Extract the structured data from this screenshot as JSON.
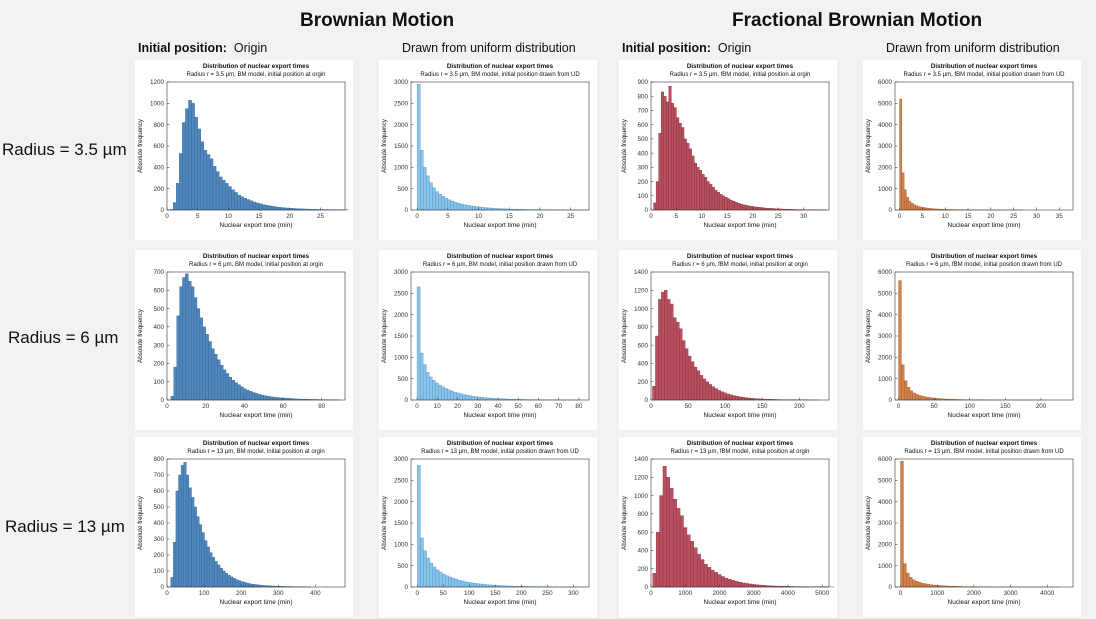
{
  "headers": [
    "Brownian Motion",
    "Fractional Brownian Motion"
  ],
  "subheaders": [
    {
      "label": "Initial position:",
      "value": "Origin"
    },
    {
      "label": "",
      "value": "Drawn from uniform distribution"
    },
    {
      "label": "Initial position:",
      "value": "Origin"
    },
    {
      "label": "",
      "value": "Drawn from uniform distribution"
    }
  ],
  "row_labels": [
    "Radius = 3.5 µm",
    "Radius = 6 µm",
    "Radius = 13 µm"
  ],
  "colors": {
    "bm_origin": "#4f87bd",
    "bm_uniform": "#87c3ea",
    "fbm_origin": "#b8505f",
    "fbm_uniform": "#d0824a"
  },
  "chart_data": [
    {
      "type": "bar",
      "title": "Distribution of nuclear export times",
      "subtitle": "Radius r = 3.5 μm, BM model, initial position at orgin",
      "xlabel": "Nuclear export time (min)",
      "ylabel": "Absolute frequency",
      "xlim": [
        0,
        29
      ],
      "ylim": [
        0,
        1200
      ],
      "xticks": [
        0,
        5,
        10,
        15,
        20,
        25
      ],
      "yticks": [
        0,
        200,
        400,
        600,
        800,
        1000,
        1200
      ],
      "bin_start": 0.5,
      "bin_width": 0.5,
      "color": "bm_origin",
      "values": [
        5,
        70,
        250,
        530,
        820,
        950,
        1030,
        1000,
        870,
        760,
        640,
        560,
        520,
        480,
        410,
        360,
        310,
        280,
        250,
        220,
        190,
        165,
        140,
        125,
        110,
        98,
        86,
        75,
        66,
        58,
        50,
        44,
        39,
        34,
        30,
        26,
        23,
        20,
        18,
        16,
        14,
        12,
        11,
        10,
        9,
        8,
        7,
        6,
        5,
        5,
        4,
        4,
        3,
        3,
        3,
        2,
        2,
        2
      ]
    },
    {
      "type": "bar",
      "title": "Distribution of nuclear export times",
      "subtitle": "Radius r = 3.5 μm, BM model, initial position drawn from UD",
      "xlabel": "Nuclear export time (min)",
      "ylabel": "Absolute frequency",
      "xlim": [
        -1,
        28
      ],
      "ylim": [
        0,
        3000
      ],
      "xticks": [
        0,
        5,
        10,
        15,
        20,
        25
      ],
      "yticks": [
        0,
        500,
        1000,
        1500,
        2000,
        2500,
        3000
      ],
      "bin_start": 0,
      "bin_width": 0.5,
      "color": "bm_uniform",
      "values": [
        2950,
        1400,
        1000,
        800,
        640,
        520,
        430,
        370,
        320,
        280,
        240,
        210,
        180,
        160,
        140,
        125,
        110,
        98,
        87,
        78,
        70,
        62,
        55,
        49,
        44,
        39,
        35,
        31,
        28,
        25,
        22,
        20,
        18,
        16,
        14,
        12,
        11,
        10,
        9,
        8,
        7,
        6,
        5,
        5,
        4,
        4,
        3,
        3,
        3,
        2,
        2,
        2,
        2,
        2,
        1,
        1
      ]
    },
    {
      "type": "bar",
      "title": "Distribution of nuclear export times",
      "subtitle": "Radius r = 3.5 μm, fBM model, initial position at orgin",
      "xlabel": "Nuclear export time (min)",
      "ylabel": "Absolute frequency",
      "xlim": [
        0,
        35
      ],
      "ylim": [
        0,
        900
      ],
      "xticks": [
        0,
        5,
        10,
        15,
        20,
        25,
        30
      ],
      "yticks": [
        0,
        100,
        200,
        300,
        400,
        500,
        600,
        700,
        800,
        900
      ],
      "bin_start": 0.5,
      "bin_width": 0.5,
      "color": "fbm_origin",
      "values": [
        50,
        200,
        540,
        830,
        800,
        760,
        870,
        750,
        720,
        650,
        610,
        580,
        500,
        470,
        430,
        380,
        330,
        300,
        280,
        250,
        230,
        200,
        180,
        160,
        140,
        125,
        110,
        100,
        90,
        80,
        70,
        62,
        55,
        48,
        42,
        37,
        33,
        29,
        26,
        24,
        21,
        19,
        17,
        15,
        13,
        12,
        11,
        10,
        9,
        8,
        7,
        6,
        5,
        5,
        4,
        4,
        3,
        3,
        3,
        2,
        2,
        2,
        2,
        2,
        1,
        1,
        1,
        1
      ]
    },
    {
      "type": "bar",
      "title": "Distribution of nuclear export times",
      "subtitle": "Radius r = 3.5 μm, fBM model, initial position drawn from UD",
      "xlabel": "Nuclear export time (min)",
      "ylabel": "Absolute frequency",
      "xlim": [
        -1,
        38
      ],
      "ylim": [
        0,
        6000
      ],
      "xticks": [
        0,
        5,
        10,
        15,
        20,
        25,
        30,
        35
      ],
      "yticks": [
        0,
        1000,
        2000,
        3000,
        4000,
        5000,
        6000
      ],
      "bin_start": 0,
      "bin_width": 0.5,
      "color": "fbm_uniform",
      "values": [
        5200,
        1750,
        950,
        600,
        420,
        320,
        250,
        200,
        165,
        140,
        120,
        100,
        85,
        72,
        62,
        54,
        47,
        41,
        36,
        32,
        28,
        25,
        22,
        19,
        17,
        15,
        13,
        12,
        10,
        9,
        8,
        7,
        6,
        6,
        5,
        5,
        4,
        4,
        3,
        3,
        3,
        2,
        2,
        2,
        2,
        2,
        1,
        1,
        1,
        1,
        1,
        1,
        1,
        1
      ]
    },
    {
      "type": "bar",
      "title": "Distribution of nuclear export times",
      "subtitle": "Radius r = 6 μm, BM model, initial position at orgin",
      "xlabel": "Nuclear export time (min)",
      "ylabel": "Absolute frequency",
      "xlim": [
        0,
        92
      ],
      "ylim": [
        0,
        700
      ],
      "xticks": [
        0,
        20,
        40,
        60,
        80
      ],
      "yticks": [
        0,
        100,
        200,
        300,
        400,
        500,
        600,
        700
      ],
      "bin_start": 2,
      "bin_width": 1.5,
      "color": "bm_origin",
      "values": [
        20,
        180,
        460,
        620,
        670,
        690,
        650,
        620,
        560,
        500,
        450,
        400,
        360,
        320,
        280,
        250,
        220,
        190,
        165,
        145,
        125,
        108,
        95,
        83,
        72,
        62,
        54,
        47,
        41,
        36,
        31,
        27,
        24,
        21,
        18,
        16,
        14,
        12,
        11,
        10,
        9,
        8,
        7,
        6,
        5,
        5,
        4,
        4,
        3,
        3,
        3,
        2,
        2,
        2,
        2,
        1,
        1,
        1
      ]
    },
    {
      "type": "bar",
      "title": "Distribution of nuclear export times",
      "subtitle": "Radius r = 6 μm, BM model, initial position drawn from UD",
      "xlabel": "Nuclear export time (min)",
      "ylabel": "Absolute frequency",
      "xlim": [
        -3,
        85
      ],
      "ylim": [
        0,
        3000
      ],
      "xticks": [
        0,
        10,
        20,
        30,
        40,
        50,
        60,
        70,
        80
      ],
      "yticks": [
        0,
        500,
        1000,
        1500,
        2000,
        2500,
        3000
      ],
      "bin_start": 0,
      "bin_width": 1.5,
      "color": "bm_uniform",
      "values": [
        2650,
        1100,
        830,
        650,
        540,
        460,
        400,
        350,
        310,
        270,
        240,
        210,
        185,
        165,
        145,
        128,
        112,
        100,
        88,
        78,
        70,
        62,
        55,
        49,
        43,
        38,
        34,
        30,
        27,
        24,
        21,
        19,
        17,
        15,
        13,
        12,
        10,
        9,
        8,
        7,
        6,
        6,
        5,
        4,
        4,
        3,
        3,
        3,
        2,
        2,
        2,
        2,
        1,
        1
      ]
    },
    {
      "type": "bar",
      "title": "Distribution of nuclear export times",
      "subtitle": "Radius r = 6 μm, fBM model, initial position at orgin",
      "xlabel": "Nuclear export time (min)",
      "ylabel": "Absolute frequency",
      "xlim": [
        0,
        240
      ],
      "ylim": [
        0,
        1400
      ],
      "xticks": [
        0,
        50,
        100,
        150,
        200
      ],
      "yticks": [
        0,
        200,
        400,
        600,
        800,
        1000,
        1200,
        1400
      ],
      "bin_start": 2,
      "bin_width": 4,
      "color": "fbm_origin",
      "values": [
        150,
        700,
        1100,
        1180,
        1200,
        1100,
        1050,
        900,
        850,
        780,
        650,
        560,
        480,
        420,
        360,
        320,
        270,
        230,
        200,
        170,
        145,
        125,
        105,
        90,
        78,
        66,
        56,
        48,
        41,
        35,
        30,
        26,
        22,
        19,
        16,
        14,
        12,
        10,
        9,
        8,
        7,
        6,
        5,
        4,
        4,
        3,
        3,
        3,
        2,
        2,
        2,
        2,
        1,
        1,
        1,
        1
      ]
    },
    {
      "type": "bar",
      "title": "Distribution of nuclear export times",
      "subtitle": "Radius r = 6 μm, fBM model, initial position drawn from UD",
      "xlabel": "Nuclear export time (min)",
      "ylabel": "Absolute frequency",
      "xlim": [
        -5,
        245
      ],
      "ylim": [
        0,
        6000
      ],
      "xticks": [
        0,
        50,
        100,
        150,
        200
      ],
      "yticks": [
        0,
        1000,
        2000,
        3000,
        4000,
        5000,
        6000
      ],
      "bin_start": 0,
      "bin_width": 4,
      "color": "fbm_uniform",
      "values": [
        5600,
        1650,
        900,
        600,
        430,
        330,
        260,
        210,
        175,
        145,
        122,
        103,
        88,
        75,
        64,
        55,
        47,
        41,
        35,
        30,
        26,
        23,
        20,
        17,
        15,
        13,
        11,
        10,
        9,
        8,
        7,
        6,
        5,
        5,
        4,
        4,
        3,
        3,
        3,
        2,
        2,
        2,
        2,
        1,
        1,
        1,
        1,
        1,
        1,
        1,
        1,
        1
      ]
    },
    {
      "type": "bar",
      "title": "Distribution of nuclear export times",
      "subtitle": "Radius r = 13 μm, BM model, initial position at orgin",
      "xlabel": "Nuclear export time (min)",
      "ylabel": "Absolute frequency",
      "xlim": [
        0,
        480
      ],
      "ylim": [
        0,
        800
      ],
      "xticks": [
        0,
        100,
        200,
        300,
        400
      ],
      "yticks": [
        0,
        100,
        200,
        300,
        400,
        500,
        600,
        700,
        800
      ],
      "bin_start": 10,
      "bin_width": 7,
      "color": "bm_origin",
      "values": [
        60,
        280,
        600,
        700,
        760,
        780,
        700,
        620,
        560,
        500,
        440,
        390,
        340,
        290,
        250,
        215,
        185,
        160,
        138,
        118,
        100,
        86,
        74,
        63,
        54,
        46,
        40,
        34,
        29,
        25,
        21,
        18,
        16,
        14,
        12,
        10,
        9,
        8,
        7,
        6,
        5,
        5,
        4,
        4,
        3,
        3,
        3,
        2,
        2,
        2,
        2,
        1,
        1,
        1
      ]
    },
    {
      "type": "bar",
      "title": "Distribution of nuclear export times",
      "subtitle": "Radius r = 13 μm, BM model, initial position drawn from UD",
      "xlabel": "Nuclear export time (min)",
      "ylabel": "Absolute frequency",
      "xlim": [
        -12,
        330
      ],
      "ylim": [
        0,
        3000
      ],
      "xticks": [
        0,
        50,
        100,
        150,
        200,
        250,
        300
      ],
      "yticks": [
        0,
        500,
        1000,
        1500,
        2000,
        2500,
        3000
      ],
      "bin_start": 0,
      "bin_width": 6,
      "color": "bm_uniform",
      "values": [
        2850,
        1150,
        850,
        680,
        560,
        470,
        400,
        350,
        300,
        265,
        235,
        205,
        180,
        160,
        142,
        126,
        112,
        100,
        89,
        79,
        70,
        62,
        55,
        49,
        44,
        39,
        35,
        31,
        27,
        24,
        21,
        19,
        17,
        15,
        13,
        12,
        10,
        9,
        8,
        7,
        6,
        6,
        5,
        4,
        4,
        3,
        3,
        3,
        2,
        2,
        2,
        2,
        1,
        1
      ]
    },
    {
      "type": "bar",
      "title": "Distribution of nuclear export times",
      "subtitle": "Radius r = 13 μm, fBM model, initial position at orgin",
      "xlabel": "Nuclear export time (min)",
      "ylabel": "Absolute frequency",
      "xlim": [
        0,
        5200
      ],
      "ylim": [
        0,
        1400
      ],
      "xticks": [
        0,
        1000,
        2000,
        3000,
        4000,
        5000
      ],
      "yticks": [
        0,
        200,
        400,
        600,
        800,
        1000,
        1200,
        1400
      ],
      "bin_start": 50,
      "bin_width": 100,
      "color": "fbm_origin",
      "values": [
        150,
        600,
        1000,
        1320,
        1200,
        1080,
        960,
        860,
        780,
        650,
        570,
        500,
        430,
        360,
        300,
        250,
        215,
        185,
        160,
        136,
        115,
        98,
        84,
        72,
        62,
        53,
        45,
        39,
        33,
        28,
        24,
        21,
        18,
        15,
        13,
        11,
        10,
        9,
        8,
        7,
        6,
        5,
        4,
        4,
        3,
        3,
        3,
        2,
        2,
        2,
        2,
        1,
        1
      ]
    },
    {
      "type": "bar",
      "title": "Distribution of nuclear export times",
      "subtitle": "Radius r = 13 μm, fBM model, initial position drawn from UD",
      "xlabel": "Nuclear export time (min)",
      "ylabel": "Absolute frequency",
      "xlim": [
        -150,
        4700
      ],
      "ylim": [
        0,
        6000
      ],
      "xticks": [
        0,
        1000,
        2000,
        3000,
        4000
      ],
      "yticks": [
        0,
        1000,
        2000,
        3000,
        4000,
        5000,
        6000
      ],
      "bin_start": 0,
      "bin_width": 80,
      "color": "fbm_uniform",
      "values": [
        5900,
        1100,
        650,
        450,
        340,
        270,
        220,
        180,
        150,
        125,
        105,
        90,
        77,
        66,
        57,
        49,
        42,
        36,
        31,
        27,
        23,
        20,
        17,
        15,
        13,
        11,
        10,
        9,
        8,
        7,
        6,
        5,
        5,
        4,
        4,
        3,
        3,
        3,
        2,
        2,
        2,
        2,
        1,
        1,
        1,
        1,
        1,
        1,
        1,
        1,
        1,
        1,
        1,
        1
      ]
    }
  ]
}
